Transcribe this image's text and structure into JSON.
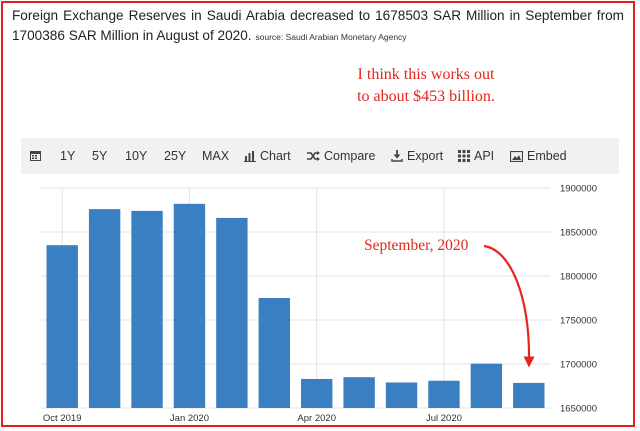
{
  "headline": "Foreign Exchange Reserves in Saudi Arabia decreased to 1678503 SAR Million in September from 1700386 SAR Million in August of 2020.",
  "source": "source: Saudi Arabian Monetary Agency",
  "note": {
    "line1": "I think this works out",
    "line2": "to about $453 billion."
  },
  "toolbar": {
    "y1": "1Y",
    "y5": "5Y",
    "y10": "10Y",
    "y25": "25Y",
    "max": "MAX",
    "chart": "Chart",
    "compare": "Compare",
    "export": "Export",
    "api": "API",
    "embed": "Embed"
  },
  "annotation": "September, 2020",
  "colors": {
    "bar": "#3a7fc1",
    "annotation": "#e4261b",
    "frame": "#e0201d"
  },
  "chart_data": {
    "type": "bar",
    "x": [
      "2019-10",
      "2019-11",
      "2019-12",
      "2020-01",
      "2020-02",
      "2020-03",
      "2020-04",
      "2020-05",
      "2020-06",
      "2020-07",
      "2020-08",
      "2020-09"
    ],
    "values": [
      1835000,
      1876000,
      1874000,
      1882000,
      1866000,
      1775000,
      1683000,
      1685000,
      1679000,
      1681000,
      1700386,
      1678503
    ],
    "x_tick_labels": [
      "Oct 2019",
      "Jan 2020",
      "Apr 2020",
      "Jul 2020"
    ],
    "y_ticks": [
      1650000,
      1700000,
      1750000,
      1800000,
      1850000,
      1900000
    ],
    "ylim": [
      1650000,
      1900000
    ],
    "yaxis_side": "right",
    "grid": true
  }
}
